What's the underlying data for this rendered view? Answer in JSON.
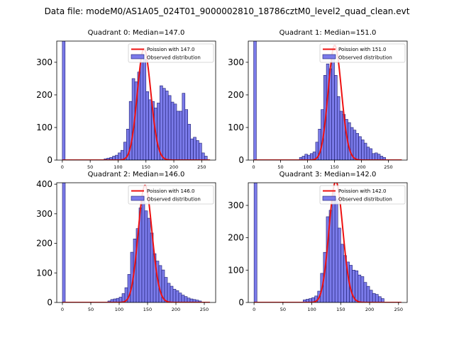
{
  "figure_title": "Data file: modeM0/AS1A05_024T01_9000002810_18786cztM0_level2_quad_clean.evt",
  "colors": {
    "bar_fill": "#7b7bea",
    "bar_edge": "#1a1a6e",
    "poisson_line": "#ee1111",
    "legend_border": "#cccccc"
  },
  "chart_data": [
    {
      "type": "bar",
      "title": "Quadrant 0: Median=147.0",
      "median": 147.0,
      "xlim": [
        -10,
        275
      ],
      "ylim": [
        0,
        365
      ],
      "xticks": [
        0,
        50,
        100,
        150,
        200,
        250
      ],
      "yticks": [
        0,
        100,
        200,
        300
      ],
      "legend": [
        "Poission with 147.0",
        "Observed distribution"
      ],
      "bin_width": 5,
      "bins": [
        [
          0,
          5,
          365
        ],
        [
          75,
          80,
          4
        ],
        [
          80,
          85,
          6
        ],
        [
          85,
          90,
          8
        ],
        [
          90,
          95,
          12
        ],
        [
          95,
          100,
          15
        ],
        [
          100,
          105,
          22
        ],
        [
          105,
          110,
          30
        ],
        [
          110,
          115,
          55
        ],
        [
          115,
          120,
          95
        ],
        [
          120,
          125,
          180
        ],
        [
          125,
          130,
          250
        ],
        [
          130,
          135,
          240
        ],
        [
          135,
          140,
          270
        ],
        [
          140,
          145,
          300
        ],
        [
          145,
          150,
          310
        ],
        [
          150,
          155,
          210
        ],
        [
          155,
          160,
          185
        ],
        [
          160,
          165,
          180
        ],
        [
          165,
          170,
          160
        ],
        [
          170,
          175,
          175
        ],
        [
          175,
          180,
          228
        ],
        [
          180,
          185,
          220
        ],
        [
          185,
          190,
          212
        ],
        [
          190,
          195,
          198
        ],
        [
          195,
          200,
          178
        ],
        [
          200,
          205,
          172
        ],
        [
          205,
          210,
          150
        ],
        [
          210,
          215,
          150
        ],
        [
          215,
          220,
          205
        ],
        [
          220,
          225,
          155
        ],
        [
          225,
          230,
          110
        ],
        [
          230,
          235,
          65
        ],
        [
          235,
          240,
          70
        ],
        [
          240,
          245,
          60
        ],
        [
          245,
          250,
          52
        ],
        [
          250,
          255,
          22
        ],
        [
          255,
          260,
          12
        ]
      ]
    },
    {
      "type": "bar",
      "title": "Quadrant 1: Median=151.0",
      "median": 151.0,
      "xlim": [
        -10,
        285
      ],
      "ylim": [
        0,
        365
      ],
      "xticks": [
        0,
        50,
        100,
        150,
        200,
        250
      ],
      "yticks": [
        0,
        100,
        200,
        300
      ],
      "legend": [
        "Poission with 151.0",
        "Observed distribution"
      ],
      "bin_width": 5,
      "bins": [
        [
          0,
          5,
          365
        ],
        [
          85,
          90,
          8
        ],
        [
          90,
          95,
          12
        ],
        [
          95,
          100,
          18
        ],
        [
          100,
          105,
          15
        ],
        [
          105,
          110,
          20
        ],
        [
          110,
          115,
          25
        ],
        [
          115,
          120,
          55
        ],
        [
          120,
          125,
          95
        ],
        [
          125,
          130,
          155
        ],
        [
          130,
          135,
          260
        ],
        [
          135,
          140,
          295
        ],
        [
          140,
          145,
          280
        ],
        [
          145,
          150,
          320
        ],
        [
          150,
          155,
          260
        ],
        [
          155,
          160,
          195
        ],
        [
          160,
          165,
          150
        ],
        [
          165,
          170,
          140
        ],
        [
          170,
          175,
          125
        ],
        [
          175,
          180,
          115
        ],
        [
          180,
          185,
          100
        ],
        [
          185,
          190,
          92
        ],
        [
          190,
          195,
          82
        ],
        [
          195,
          200,
          72
        ],
        [
          200,
          205,
          62
        ],
        [
          205,
          210,
          52
        ],
        [
          210,
          215,
          40
        ],
        [
          215,
          220,
          35
        ],
        [
          220,
          225,
          20
        ],
        [
          225,
          230,
          22
        ],
        [
          230,
          235,
          18
        ],
        [
          235,
          240,
          12
        ],
        [
          240,
          245,
          8
        ]
      ]
    },
    {
      "type": "bar",
      "title": "Quadrant 2: Median=146.0",
      "median": 146.0,
      "xlim": [
        -10,
        270
      ],
      "ylim": [
        0,
        405
      ],
      "xticks": [
        0,
        50,
        100,
        150,
        200,
        250
      ],
      "yticks": [
        0,
        100,
        200,
        300,
        400
      ],
      "legend": [
        "Poission with 146.0",
        "Observed distribution"
      ],
      "bin_width": 5,
      "bins": [
        [
          0,
          5,
          405
        ],
        [
          80,
          85,
          5
        ],
        [
          85,
          90,
          10
        ],
        [
          90,
          95,
          12
        ],
        [
          95,
          100,
          14
        ],
        [
          100,
          105,
          18
        ],
        [
          105,
          110,
          30
        ],
        [
          110,
          115,
          50
        ],
        [
          115,
          120,
          95
        ],
        [
          120,
          125,
          170
        ],
        [
          125,
          130,
          215
        ],
        [
          130,
          135,
          250
        ],
        [
          135,
          140,
          320
        ],
        [
          140,
          145,
          360
        ],
        [
          145,
          150,
          310
        ],
        [
          150,
          155,
          285
        ],
        [
          155,
          160,
          235
        ],
        [
          160,
          165,
          165
        ],
        [
          165,
          170,
          140
        ],
        [
          170,
          175,
          125
        ],
        [
          175,
          180,
          110
        ],
        [
          180,
          185,
          85
        ],
        [
          185,
          190,
          65
        ],
        [
          190,
          195,
          55
        ],
        [
          195,
          200,
          45
        ],
        [
          200,
          205,
          40
        ],
        [
          205,
          210,
          32
        ],
        [
          210,
          215,
          25
        ],
        [
          215,
          220,
          20
        ],
        [
          220,
          225,
          15
        ],
        [
          225,
          230,
          12
        ],
        [
          230,
          235,
          10
        ],
        [
          235,
          240,
          8
        ],
        [
          240,
          245,
          5
        ]
      ]
    },
    {
      "type": "bar",
      "title": "Quadrant 3: Median=142.0",
      "median": 142.0,
      "xlim": [
        -10,
        265
      ],
      "ylim": [
        0,
        370
      ],
      "xticks": [
        0,
        50,
        100,
        150,
        200,
        250
      ],
      "yticks": [
        0,
        100,
        200,
        300
      ],
      "legend": [
        "Poission with 142.0",
        "Observed distribution"
      ],
      "bin_width": 5,
      "bins": [
        [
          0,
          5,
          370
        ],
        [
          85,
          90,
          8
        ],
        [
          90,
          95,
          10
        ],
        [
          95,
          100,
          12
        ],
        [
          100,
          105,
          15
        ],
        [
          105,
          110,
          20
        ],
        [
          110,
          115,
          35
        ],
        [
          115,
          120,
          90
        ],
        [
          120,
          125,
          155
        ],
        [
          125,
          130,
          265
        ],
        [
          130,
          135,
          285
        ],
        [
          135,
          140,
          340
        ],
        [
          140,
          145,
          320
        ],
        [
          145,
          150,
          230
        ],
        [
          150,
          155,
          180
        ],
        [
          155,
          160,
          145
        ],
        [
          160,
          165,
          125
        ],
        [
          165,
          170,
          115
        ],
        [
          170,
          175,
          100
        ],
        [
          175,
          180,
          98
        ],
        [
          180,
          185,
          85
        ],
        [
          185,
          190,
          80
        ],
        [
          190,
          195,
          62
        ],
        [
          195,
          200,
          50
        ],
        [
          200,
          205,
          38
        ],
        [
          205,
          210,
          28
        ],
        [
          210,
          215,
          25
        ],
        [
          215,
          220,
          18
        ],
        [
          220,
          225,
          12
        ]
      ]
    }
  ]
}
